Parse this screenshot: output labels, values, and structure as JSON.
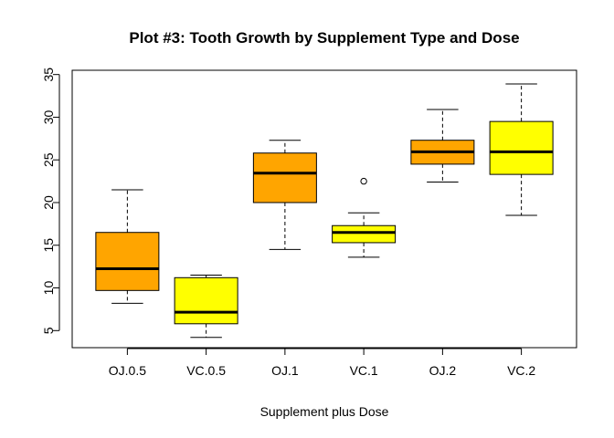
{
  "chart_data": {
    "type": "boxplot",
    "title": "Plot #3: Tooth Growth by Supplement Type and Dose",
    "xlabel": "Supplement plus Dose",
    "ylabel": "",
    "ylim": [
      3,
      35.5
    ],
    "yticks": [
      5,
      10,
      15,
      20,
      25,
      30,
      35
    ],
    "ytick_labels": [
      "5",
      "10",
      "15",
      "20",
      "25",
      "30",
      "35"
    ],
    "categories": [
      "OJ.0.5",
      "VC.0.5",
      "OJ.1",
      "VC.1",
      "OJ.2",
      "VC.2"
    ],
    "grid": false,
    "legend": "none",
    "boxes": [
      {
        "name": "OJ.0.5",
        "whisker_low": 8.2,
        "q1": 9.7,
        "median": 12.25,
        "q3": 16.5,
        "whisker_high": 21.5,
        "outliers": [],
        "color": "#FFA500"
      },
      {
        "name": "VC.0.5",
        "whisker_low": 4.2,
        "q1": 5.8,
        "median": 7.15,
        "q3": 11.2,
        "whisker_high": 11.5,
        "outliers": [],
        "color": "#FFFF00"
      },
      {
        "name": "OJ.1",
        "whisker_low": 14.5,
        "q1": 20.0,
        "median": 23.45,
        "q3": 25.8,
        "whisker_high": 27.3,
        "outliers": [],
        "color": "#FFA500"
      },
      {
        "name": "VC.1",
        "whisker_low": 13.6,
        "q1": 15.3,
        "median": 16.5,
        "q3": 17.3,
        "whisker_high": 18.8,
        "outliers": [
          22.5
        ],
        "color": "#FFFF00"
      },
      {
        "name": "OJ.2",
        "whisker_low": 22.4,
        "q1": 24.5,
        "median": 25.95,
        "q3": 27.3,
        "whisker_high": 30.9,
        "outliers": [],
        "color": "#FFA500"
      },
      {
        "name": "VC.2",
        "whisker_low": 18.5,
        "q1": 23.3,
        "median": 25.95,
        "q3": 29.5,
        "whisker_high": 33.9,
        "outliers": [],
        "color": "#FFFF00"
      }
    ]
  }
}
